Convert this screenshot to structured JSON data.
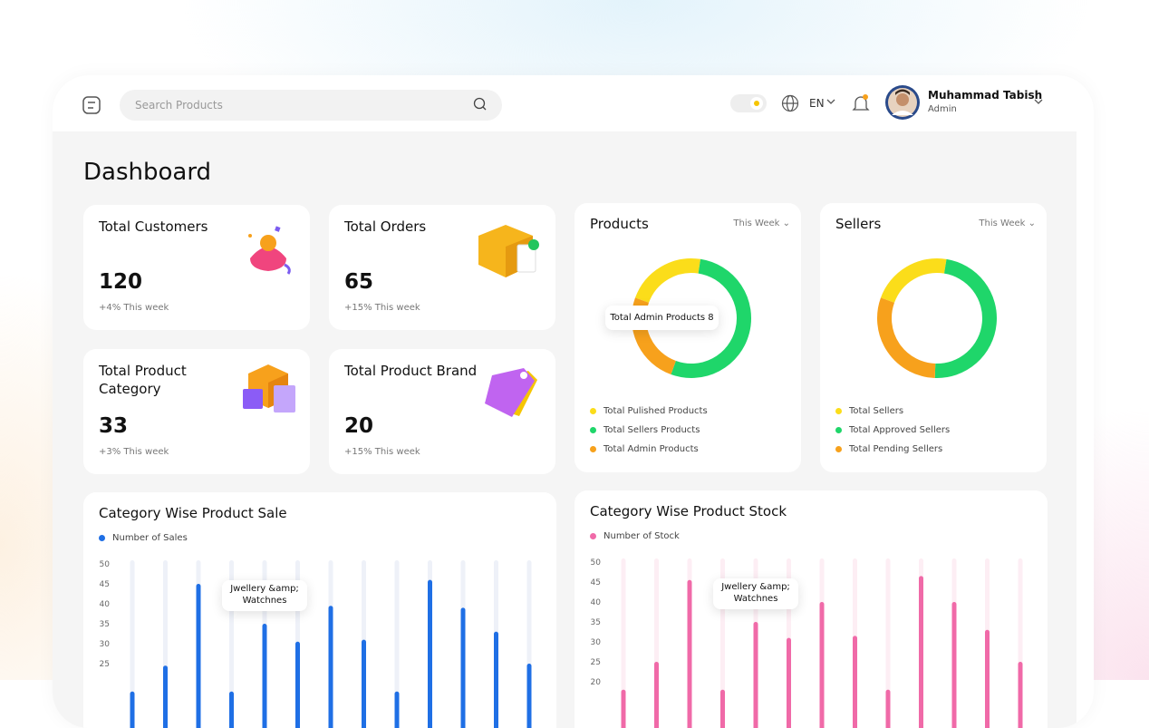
{
  "header": {
    "search_placeholder": "Search Products",
    "language": "EN",
    "user": {
      "name": "Muhammad Tabish",
      "role": "Admin"
    }
  },
  "page_title": "Dashboard",
  "stats": [
    {
      "title": "Total Customers",
      "value": 120,
      "change": "+4% This week"
    },
    {
      "title": "Total Orders",
      "value": 65,
      "change": "+15% This week"
    },
    {
      "title": "Total Product Category",
      "value": 33,
      "change": "+3% This week"
    },
    {
      "title": "Total Product Brand",
      "value": 20,
      "change": "+15% This week"
    }
  ],
  "chart_data": [
    {
      "type": "donut",
      "title": "Products",
      "period": "This Week",
      "tooltip": "Total Admin Products 8",
      "categories": [
        "Total Pulished Products",
        "Total Sellers Products",
        "Total Admin Products"
      ],
      "values": [
        7,
        17,
        8
      ],
      "colors": [
        "#fbdd1a",
        "#1fd66a",
        "#f7a11c"
      ]
    },
    {
      "type": "donut",
      "title": "Sellers",
      "period": "This Week",
      "categories": [
        "Total Sellers",
        "Total Approved Sellers",
        "Total Pending Sellers"
      ],
      "values": [
        22,
        48,
        30
      ],
      "colors": [
        "#fbdd1a",
        "#1fd66a",
        "#f7a11c"
      ]
    },
    {
      "type": "bar",
      "title": "Category Wise Product Sale",
      "tooltip": "Jwellery &amp; Watchnes",
      "series": [
        {
          "name": "Number of Sales",
          "color": "#1f6fe5",
          "track": "#eef1f8",
          "values": [
            18,
            24.5,
            45,
            18,
            35,
            30.5,
            39.5,
            31,
            18,
            46,
            39,
            33,
            25
          ]
        }
      ],
      "ylim": [
        0,
        50
      ],
      "yticks": [
        25,
        30,
        35,
        40,
        45,
        50
      ]
    },
    {
      "type": "bar",
      "title": "Category Wise Product Stock",
      "tooltip": "Jwellery &amp; Watchnes",
      "series": [
        {
          "name": "Number of Stock",
          "color": "#f06aa8",
          "track": "#fdeef4",
          "values": [
            18,
            25,
            45.5,
            18,
            35,
            31,
            40,
            31.5,
            18,
            46.5,
            40,
            33,
            25
          ]
        }
      ],
      "ylim": [
        0,
        50
      ],
      "yticks": [
        20,
        25,
        30,
        35,
        40,
        45,
        50
      ]
    }
  ]
}
